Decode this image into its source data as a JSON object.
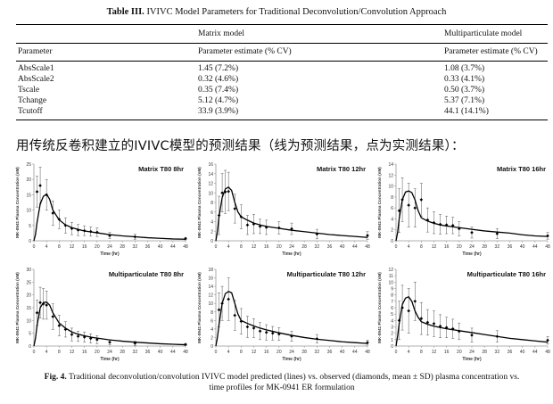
{
  "table": {
    "label": "Table III.",
    "title": "IVIVC Model Parameters for Traditional Deconvolution/Convolution Approach",
    "group_headers": [
      "Matrix model",
      "Multiparticulate model"
    ],
    "col_headers": [
      "Parameter",
      "Parameter estimate (% CV)",
      "Parameter estimate (% CV)"
    ],
    "rows": [
      [
        "AbsScale1",
        "1.45 (7.2%)",
        "1.08 (3.7%)"
      ],
      [
        "AbsScale2",
        "0.32 (4.6%)",
        "0.33 (4.1%)"
      ],
      [
        "Tscale",
        "0.35 (7.4%)",
        "0.50 (3.7%)"
      ],
      [
        "Tchange",
        "5.12 (4.7%)",
        "5.37 (7.1%)"
      ],
      [
        "Tcutoff",
        "33.9 (3.9%)",
        "44.1 (14.1%)"
      ]
    ]
  },
  "chinese_note": "用传统反卷积建立的IVIVC模型的预测结果（线为预测结果，点为实测结果）：",
  "figure_caption": {
    "label": "Fig. 4.",
    "text_line1": "Traditional deconvolution/convolution IVIVC model predicted (lines) vs. observed (diamonds, mean ± SD) plasma concentration vs.",
    "text_line2": "time profiles for MK-0941 ER formulation"
  },
  "chart_data": [
    {
      "type": "line",
      "title": "Matrix T80 8hr",
      "xlabel": "Time (hr)",
      "ylabel": "MK-0941 Plasma Concentration (nM)",
      "xlim": [
        0,
        48
      ],
      "ylim": [
        0,
        25
      ],
      "xticks": [
        0,
        4,
        8,
        12,
        16,
        20,
        24,
        28,
        32,
        36,
        40,
        44,
        48
      ],
      "yticks": [
        0,
        5,
        10,
        15,
        20,
        25
      ],
      "predicted": {
        "x": [
          0,
          0.5,
          1,
          2,
          3,
          4,
          5,
          6,
          8,
          10,
          12,
          14,
          16,
          18,
          20,
          24,
          28,
          32,
          36,
          40,
          44,
          48
        ],
        "y": [
          0,
          2,
          6,
          12,
          14.5,
          15.2,
          13.5,
          10,
          6.8,
          5.2,
          4.3,
          3.7,
          3.2,
          2.9,
          2.6,
          2.0,
          1.6,
          1.3,
          1.0,
          0.8,
          0.6,
          0.5
        ]
      },
      "observed": {
        "x": [
          1,
          2,
          4,
          6,
          8,
          10,
          12,
          14,
          16,
          18,
          20,
          24,
          32,
          48
        ],
        "y": [
          16,
          18,
          15,
          9,
          7,
          5,
          4,
          3.5,
          3.3,
          3,
          2.8,
          1.7,
          1.3,
          0.7
        ],
        "sd": [
          5,
          6,
          5,
          4,
          3,
          2.5,
          2,
          1.8,
          1.6,
          1.5,
          1.4,
          1,
          0.8,
          0.4
        ]
      }
    },
    {
      "type": "line",
      "title": "Matrix T80 12hr",
      "xlabel": "Time (hr)",
      "ylabel": "MK-0941 Plasma Concentration (nM)",
      "xlim": [
        0,
        48
      ],
      "ylim": [
        0,
        16
      ],
      "xticks": [
        0,
        4,
        8,
        12,
        16,
        20,
        24,
        28,
        32,
        36,
        40,
        44,
        48
      ],
      "yticks": [
        0,
        2,
        4,
        6,
        8,
        10,
        12,
        14,
        16
      ],
      "predicted": {
        "x": [
          0,
          0.5,
          1,
          2,
          3,
          4,
          5,
          6,
          7,
          8,
          10,
          12,
          14,
          16,
          20,
          24,
          28,
          32,
          36,
          40,
          44,
          48
        ],
        "y": [
          0,
          2,
          5,
          9,
          10.8,
          11.2,
          10.5,
          8,
          6,
          5,
          4.3,
          3.7,
          3.3,
          3,
          2.6,
          2.2,
          1.9,
          1.6,
          1.3,
          1.1,
          0.9,
          0.7
        ]
      },
      "observed": {
        "x": [
          1,
          2,
          3,
          4,
          6,
          8,
          10,
          12,
          14,
          16,
          20,
          24,
          32,
          48
        ],
        "y": [
          5.3,
          10,
          10.2,
          10.3,
          6.7,
          5,
          3.3,
          3.5,
          3,
          2.8,
          2.7,
          2.5,
          1.4,
          1.1
        ],
        "sd": [
          4,
          4,
          4.5,
          4,
          3,
          2.5,
          2,
          2,
          1.5,
          1.5,
          1.3,
          1.2,
          1,
          0.8
        ]
      }
    },
    {
      "type": "line",
      "title": "Matrix T80 16hr",
      "xlabel": "Time (hr)",
      "ylabel": "MK-0941 Plasma Concentration (nM)",
      "xlim": [
        0,
        48
      ],
      "ylim": [
        0,
        14
      ],
      "xticks": [
        0,
        4,
        8,
        12,
        16,
        20,
        24,
        28,
        32,
        36,
        40,
        44,
        48
      ],
      "yticks": [
        0,
        2,
        4,
        6,
        8,
        10,
        12,
        14
      ],
      "predicted": {
        "x": [
          0,
          0.5,
          1,
          2,
          3,
          4,
          5,
          6,
          7,
          8,
          10,
          12,
          14,
          16,
          20,
          24,
          28,
          32,
          36,
          40,
          44,
          48
        ],
        "y": [
          0,
          1.5,
          4,
          7.5,
          8.9,
          9.1,
          8.8,
          7.5,
          5.5,
          4.2,
          3.6,
          3.2,
          2.9,
          2.7,
          2.4,
          2.1,
          1.8,
          1.6,
          1.4,
          1.1,
          0.9,
          0.8
        ]
      },
      "observed": {
        "x": [
          1,
          2,
          4,
          6,
          8,
          10,
          12,
          14,
          16,
          18,
          20,
          24,
          32,
          48
        ],
        "y": [
          5.5,
          7.5,
          6.5,
          6,
          7.5,
          3.8,
          3.3,
          3,
          2.9,
          2.8,
          2.2,
          1.5,
          1.3,
          0.9
        ],
        "sd": [
          4,
          4,
          4,
          3.5,
          3,
          2.2,
          2,
          1.8,
          1.6,
          1.5,
          1.3,
          1,
          0.9,
          0.6
        ]
      }
    },
    {
      "type": "line",
      "title": "Multiparticulate T80 8hr",
      "xlabel": "Time (hr)",
      "ylabel": "MK-0941 Plasma Concentration (nM)",
      "xlim": [
        0,
        48
      ],
      "ylim": [
        0,
        30
      ],
      "xticks": [
        0,
        4,
        8,
        12,
        16,
        20,
        24,
        28,
        32,
        36,
        40,
        44,
        48
      ],
      "yticks": [
        0,
        5,
        10,
        15,
        20,
        25,
        30
      ],
      "predicted": {
        "x": [
          0,
          0.5,
          1,
          2,
          3,
          4,
          5,
          6,
          8,
          10,
          12,
          14,
          16,
          18,
          20,
          24,
          28,
          32,
          36,
          40,
          44,
          48
        ],
        "y": [
          0,
          3,
          8,
          15,
          17,
          17.2,
          16,
          13,
          9,
          7,
          5.5,
          4.6,
          4,
          3.5,
          3.1,
          2.4,
          1.9,
          1.5,
          1.2,
          0.9,
          0.7,
          0.5
        ]
      },
      "observed": {
        "x": [
          1,
          2,
          3,
          4,
          6,
          8,
          10,
          12,
          14,
          16,
          18,
          20,
          24,
          32,
          48
        ],
        "y": [
          13,
          17,
          16.5,
          16,
          11.5,
          8,
          6.5,
          4.5,
          3.8,
          3.5,
          3,
          2.5,
          1.5,
          1.1,
          0.6
        ],
        "sd": [
          5,
          6,
          6,
          5.5,
          5,
          4,
          3,
          2.5,
          2,
          2,
          1.8,
          1.6,
          1,
          0.8,
          0.4
        ]
      }
    },
    {
      "type": "line",
      "title": "Multiparticulate T80 12hr",
      "xlabel": "Time (hr)",
      "ylabel": "MK-0941 Plasma Concentration (nM)",
      "xlim": [
        0,
        48
      ],
      "ylim": [
        0,
        18
      ],
      "xticks": [
        0,
        4,
        8,
        12,
        16,
        20,
        24,
        28,
        32,
        36,
        40,
        44,
        48
      ],
      "yticks": [
        0,
        2,
        4,
        6,
        8,
        10,
        12,
        14,
        16,
        18
      ],
      "predicted": {
        "x": [
          0,
          0.5,
          1,
          2,
          3,
          4,
          5,
          6,
          7,
          8,
          10,
          12,
          14,
          16,
          20,
          24,
          28,
          32,
          36,
          40,
          44,
          48
        ],
        "y": [
          0,
          2,
          5,
          10,
          12.3,
          12.8,
          12.5,
          10,
          7.5,
          6,
          5.3,
          4.7,
          4.2,
          3.8,
          3.1,
          2.5,
          2,
          1.6,
          1.3,
          1.0,
          0.8,
          0.6
        ]
      },
      "observed": {
        "x": [
          1,
          2,
          4,
          6,
          8,
          10,
          12,
          14,
          16,
          18,
          20,
          24,
          32,
          48
        ],
        "y": [
          8.5,
          10,
          11,
          7.2,
          5.8,
          4.5,
          4.2,
          3.5,
          3.2,
          3,
          2.8,
          2.3,
          1.7,
          0.8
        ],
        "sd": [
          4,
          4,
          5,
          3.5,
          3,
          2.5,
          2.2,
          2,
          1.8,
          1.6,
          1.5,
          1.2,
          1,
          0.6
        ]
      }
    },
    {
      "type": "line",
      "title": "Multiparticulate T80 16hr",
      "xlabel": "Time (hr)",
      "ylabel": "MK-0941 Plasma Concentration (nM)",
      "xlim": [
        0,
        48
      ],
      "ylim": [
        0,
        12
      ],
      "xticks": [
        0,
        4,
        8,
        12,
        16,
        20,
        24,
        28,
        32,
        36,
        40,
        44,
        48
      ],
      "yticks": [
        0,
        1,
        2,
        3,
        4,
        5,
        6,
        7,
        8,
        9,
        10,
        11,
        12
      ],
      "predicted": {
        "x": [
          0,
          0.5,
          1,
          2,
          3,
          4,
          5,
          6,
          7,
          8,
          10,
          12,
          14,
          16,
          20,
          24,
          28,
          32,
          36,
          40,
          44,
          48
        ],
        "y": [
          0,
          1.5,
          3.5,
          6.5,
          7.5,
          7.7,
          7,
          5.5,
          4.5,
          3.8,
          3.4,
          3.1,
          2.9,
          2.7,
          2.4,
          2.1,
          1.8,
          1.5,
          1.2,
          1.0,
          0.8,
          0.6
        ]
      },
      "observed": {
        "x": [
          1,
          2,
          4,
          6,
          8,
          10,
          12,
          14,
          16,
          18,
          20,
          24,
          32,
          48
        ],
        "y": [
          4,
          6,
          5.5,
          7,
          4.3,
          3.7,
          3.5,
          3.1,
          2.9,
          2.7,
          2.3,
          1.7,
          1.5,
          0.9
        ],
        "sd": [
          3,
          3.5,
          3.5,
          3,
          2.5,
          2,
          2,
          1.8,
          1.6,
          1.5,
          1.3,
          1.1,
          0.9,
          0.6
        ]
      }
    }
  ]
}
